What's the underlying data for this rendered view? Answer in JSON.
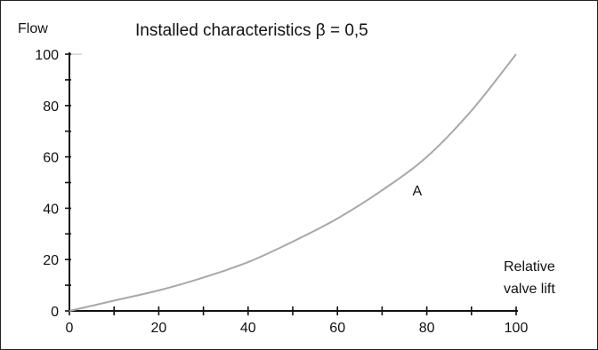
{
  "chart_data": {
    "type": "line",
    "title": "Installed characteristics β = 0,5",
    "ylabel": "Flow",
    "xlabel_lines": [
      "Relative",
      "valve lift"
    ],
    "xlim": [
      0,
      100
    ],
    "ylim": [
      0,
      100
    ],
    "x_ticks": [
      "0",
      "20",
      "40",
      "60",
      "80",
      "100"
    ],
    "y_ticks": [
      "0",
      "20",
      "40",
      "60",
      "80",
      "100"
    ],
    "grid": false,
    "series": [
      {
        "name": "A",
        "color": "#a8a8a8",
        "x": [
          0,
          10,
          20,
          30,
          40,
          50,
          60,
          70,
          80,
          90,
          100
        ],
        "y": [
          0,
          4,
          8,
          13,
          19,
          27,
          36,
          47,
          60,
          78,
          100
        ]
      }
    ],
    "colors": {
      "axis": "#111111",
      "frame": "#222222",
      "text": "#111111"
    }
  }
}
